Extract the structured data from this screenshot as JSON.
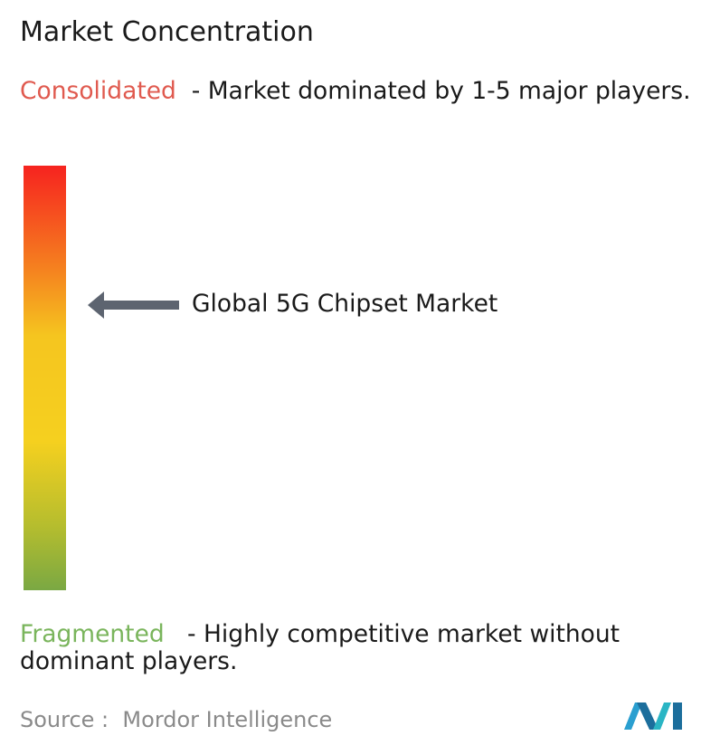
{
  "title": "Market Concentration",
  "top": {
    "label": "Consolidated",
    "description": "- Market dominated by 1-5 major players."
  },
  "marker": {
    "label": "Global 5G Chipset Market"
  },
  "bottom": {
    "label": "Fragmented",
    "description": "- Highly competitive market without dominant players."
  },
  "source": {
    "prefix": "Source :",
    "name": "Mordor Intelligence"
  }
}
